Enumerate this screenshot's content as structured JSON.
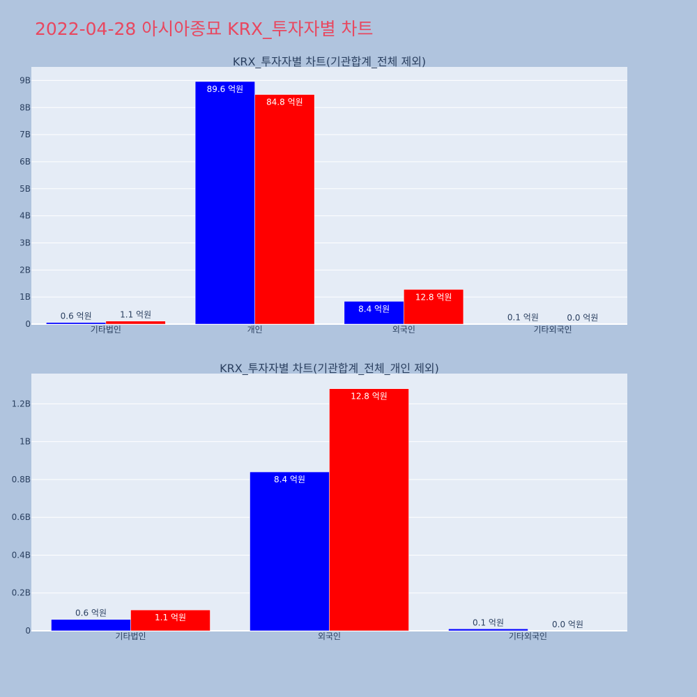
{
  "title": "2022-04-28 아시아종묘 KRX_투자자별 차트",
  "colors": {
    "page_bg": "#b0c4de",
    "plot_bg": "#e5ecf6",
    "title": "#e8475f",
    "text": "#2a3f5f",
    "series_a": "#0000ff",
    "series_b": "#ff0000"
  },
  "chart_data": [
    {
      "type": "bar",
      "title": "KRX_투자자별 차트(기관합계_전체 제외)",
      "categories": [
        "기타법인",
        "개인",
        "외국인",
        "기타외국인"
      ],
      "series": [
        {
          "color": "#0000ff",
          "values": [
            60000000,
            8960000000,
            840000000,
            10000000
          ],
          "labels": [
            "0.6 억원",
            "89.6 억원",
            "8.4 억원",
            "0.1 억원"
          ]
        },
        {
          "color": "#ff0000",
          "values": [
            110000000,
            8480000000,
            1280000000,
            0
          ],
          "labels": [
            "1.1 억원",
            "84.8 억원",
            "12.8 억원",
            "0.0 억원"
          ]
        }
      ],
      "ylim": [
        0,
        9500000000
      ],
      "yticks": [
        0,
        1000000000,
        2000000000,
        3000000000,
        4000000000,
        5000000000,
        6000000000,
        7000000000,
        8000000000,
        9000000000
      ],
      "ytick_labels": [
        "0",
        "1B",
        "2B",
        "3B",
        "4B",
        "5B",
        "6B",
        "7B",
        "8B",
        "9B"
      ],
      "grid": true,
      "legend": "none"
    },
    {
      "type": "bar",
      "title": "KRX_투자자별 차트(기관합계_전체_개인 제외)",
      "categories": [
        "기타법인",
        "외국인",
        "기타외국인"
      ],
      "series": [
        {
          "color": "#0000ff",
          "values": [
            60000000,
            840000000,
            10000000
          ],
          "labels": [
            "0.6 억원",
            "8.4 억원",
            "0.1 억원"
          ]
        },
        {
          "color": "#ff0000",
          "values": [
            110000000,
            1280000000,
            0
          ],
          "labels": [
            "1.1 억원",
            "12.8 억원",
            "0.0 억원"
          ]
        }
      ],
      "ylim": [
        0,
        1360000000
      ],
      "yticks": [
        0,
        200000000,
        400000000,
        600000000,
        800000000,
        1000000000,
        1200000000
      ],
      "ytick_labels": [
        "0",
        "0.2B",
        "0.4B",
        "0.6B",
        "0.8B",
        "1B",
        "1.2B"
      ],
      "grid": true,
      "legend": "none"
    }
  ]
}
